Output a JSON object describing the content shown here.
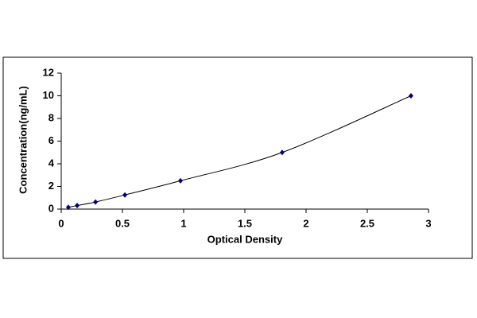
{
  "chart_data": {
    "type": "scatter-line",
    "x_label": "Optical Density",
    "y_label": "Concentration(ng/mL)",
    "x": [
      0.058,
      0.13,
      0.28,
      0.52,
      0.974,
      1.805,
      2.857
    ],
    "series": [
      {
        "color": "#000080",
        "line_color": "#000000",
        "values": [
          0.156,
          0.312,
          0.625,
          1.25,
          2.5,
          5,
          10
        ]
      }
    ],
    "xlim": [
      0,
      3
    ],
    "xticks": [
      0,
      0.5,
      1,
      1.5,
      2,
      2.5,
      3
    ],
    "ylim": [
      0,
      12
    ],
    "yticks": [
      0,
      2,
      4,
      6,
      8,
      10,
      12
    ],
    "grid": false
  }
}
